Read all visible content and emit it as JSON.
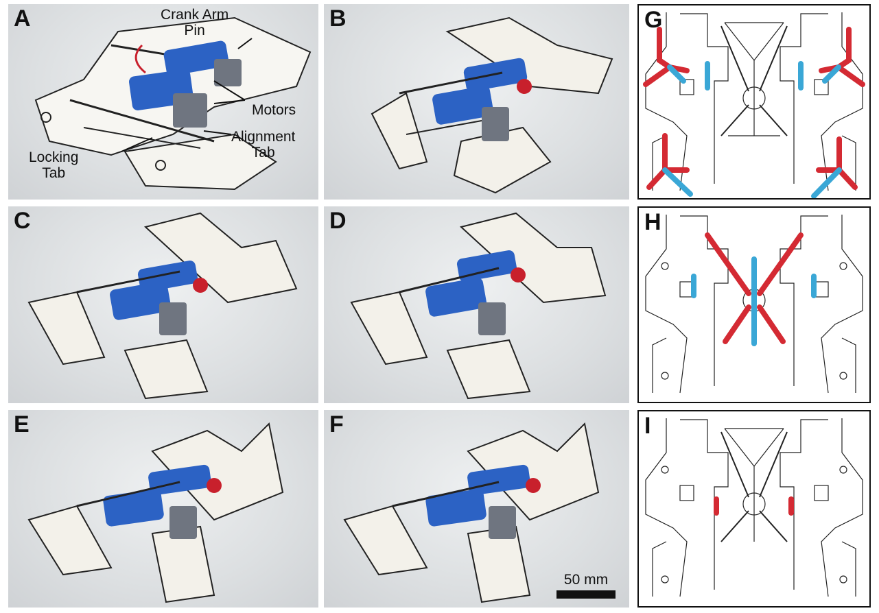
{
  "panels": {
    "A": {
      "label": "A"
    },
    "B": {
      "label": "B"
    },
    "C": {
      "label": "C"
    },
    "D": {
      "label": "D"
    },
    "E": {
      "label": "E"
    },
    "F": {
      "label": "F"
    },
    "G": {
      "label": "G"
    },
    "H": {
      "label": "H"
    },
    "I": {
      "label": "I"
    }
  },
  "annotations": {
    "crank_arm_pin": "Crank Arm\nPin",
    "motors": "Motors",
    "alignment_tab": "Alignment\nTab",
    "locking_tab": "Locking\nTab"
  },
  "scale_bar": {
    "label": "50 mm"
  },
  "colors": {
    "red_highlight": "#d42a33",
    "blue_highlight": "#3aa7d6",
    "battery": "#2c62c4",
    "motor": "#c8202c"
  }
}
